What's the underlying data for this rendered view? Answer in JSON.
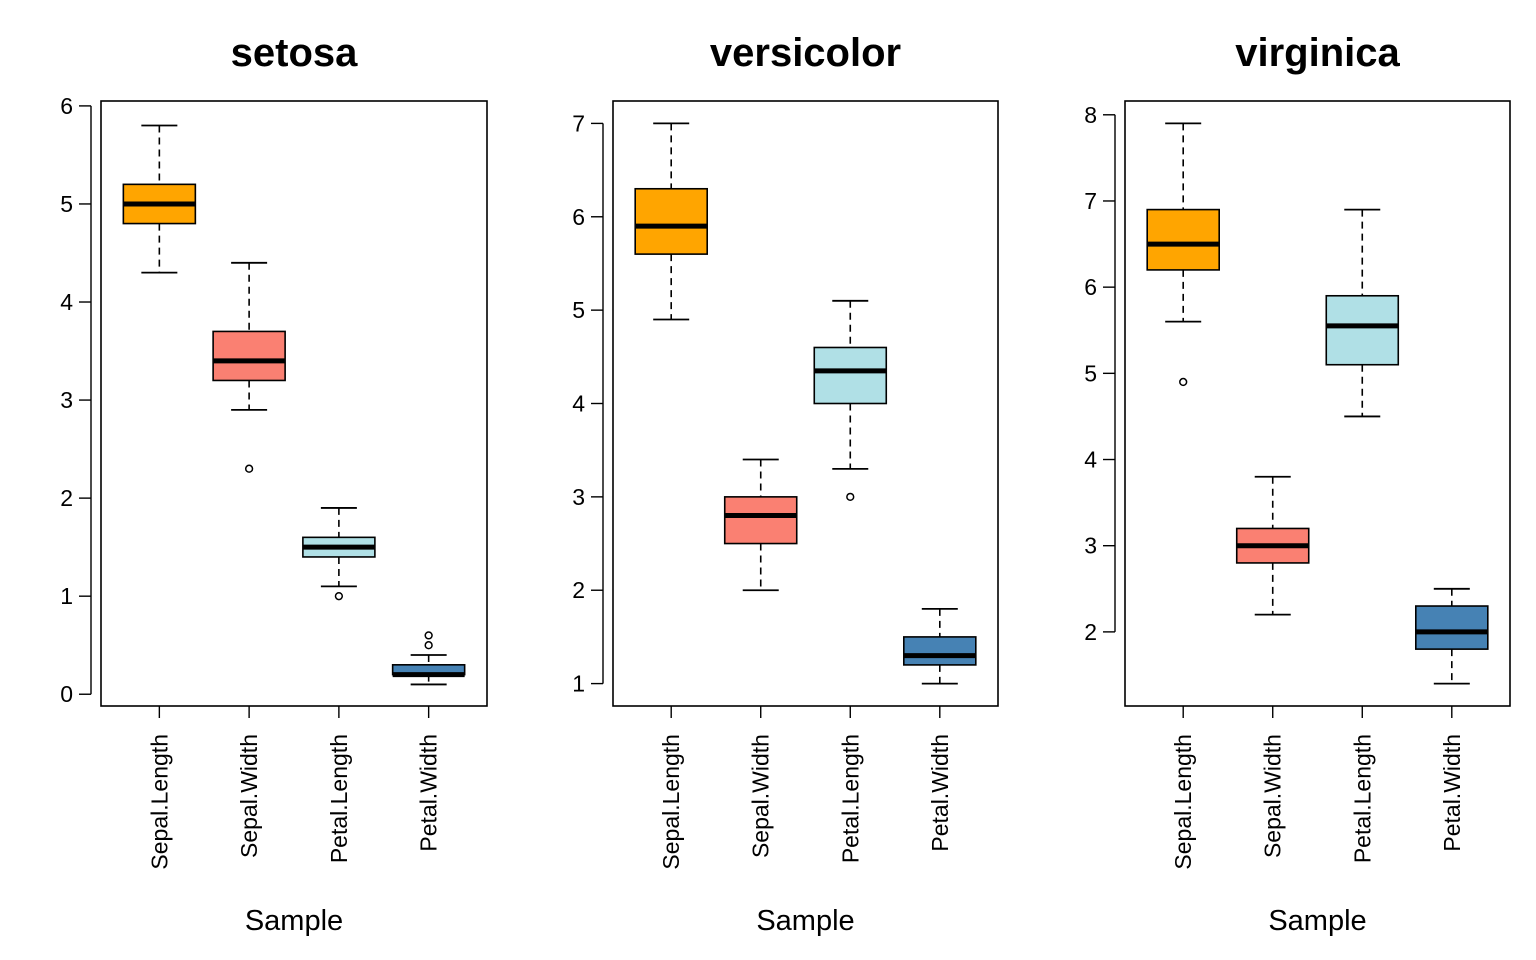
{
  "chart_data": [
    {
      "type": "boxplot",
      "title": "setosa",
      "xlabel": "Sample",
      "ylabel": "",
      "categories": [
        "Sepal.Length",
        "Sepal.Width",
        "Petal.Length",
        "Petal.Width"
      ],
      "colors": [
        "#ffa500",
        "#fa8072",
        "#b0e0e6",
        "#4682b4"
      ],
      "ylim": [
        -0.12,
        6.05
      ],
      "yticks": [
        0,
        1,
        2,
        3,
        4,
        5,
        6
      ],
      "boxes": [
        {
          "whisker_low": 4.3,
          "q1": 4.8,
          "median": 5.0,
          "q3": 5.2,
          "whisker_high": 5.8,
          "outliers": []
        },
        {
          "whisker_low": 2.9,
          "q1": 3.2,
          "median": 3.4,
          "q3": 3.7,
          "whisker_high": 4.4,
          "outliers": [
            2.3
          ]
        },
        {
          "whisker_low": 1.1,
          "q1": 1.4,
          "median": 1.5,
          "q3": 1.6,
          "whisker_high": 1.9,
          "outliers": [
            1.0
          ]
        },
        {
          "whisker_low": 0.1,
          "q1": 0.2,
          "median": 0.2,
          "q3": 0.3,
          "whisker_high": 0.4,
          "outliers": [
            0.5,
            0.6
          ]
        }
      ]
    },
    {
      "type": "boxplot",
      "title": "versicolor",
      "xlabel": "Sample",
      "ylabel": "",
      "categories": [
        "Sepal.Length",
        "Sepal.Width",
        "Petal.Length",
        "Petal.Width"
      ],
      "colors": [
        "#ffa500",
        "#fa8072",
        "#b0e0e6",
        "#4682b4"
      ],
      "ylim": [
        0.76,
        7.24
      ],
      "yticks": [
        1,
        2,
        3,
        4,
        5,
        6,
        7
      ],
      "boxes": [
        {
          "whisker_low": 4.9,
          "q1": 5.6,
          "median": 5.9,
          "q3": 6.3,
          "whisker_high": 7.0,
          "outliers": []
        },
        {
          "whisker_low": 2.0,
          "q1": 2.5,
          "median": 2.8,
          "q3": 3.0,
          "whisker_high": 3.4,
          "outliers": []
        },
        {
          "whisker_low": 3.3,
          "q1": 4.0,
          "median": 4.35,
          "q3": 4.6,
          "whisker_high": 5.1,
          "outliers": [
            3.0
          ]
        },
        {
          "whisker_low": 1.0,
          "q1": 1.2,
          "median": 1.3,
          "q3": 1.5,
          "whisker_high": 1.8,
          "outliers": []
        }
      ]
    },
    {
      "type": "boxplot",
      "title": "virginica",
      "xlabel": "Sample",
      "ylabel": "",
      "categories": [
        "Sepal.Length",
        "Sepal.Width",
        "Petal.Length",
        "Petal.Width"
      ],
      "colors": [
        "#ffa500",
        "#fa8072",
        "#b0e0e6",
        "#4682b4"
      ],
      "ylim": [
        1.14,
        8.16
      ],
      "yticks": [
        2,
        3,
        4,
        5,
        6,
        7,
        8
      ],
      "boxes": [
        {
          "whisker_low": 5.6,
          "q1": 6.2,
          "median": 6.5,
          "q3": 6.9,
          "whisker_high": 7.9,
          "outliers": [
            4.9
          ]
        },
        {
          "whisker_low": 2.2,
          "q1": 2.8,
          "median": 3.0,
          "q3": 3.2,
          "whisker_high": 3.8,
          "outliers": []
        },
        {
          "whisker_low": 4.5,
          "q1": 5.1,
          "median": 5.55,
          "q3": 5.9,
          "whisker_high": 6.9,
          "outliers": []
        },
        {
          "whisker_low": 1.4,
          "q1": 1.8,
          "median": 2.0,
          "q3": 2.3,
          "whisker_high": 2.5,
          "outliers": []
        }
      ]
    }
  ]
}
